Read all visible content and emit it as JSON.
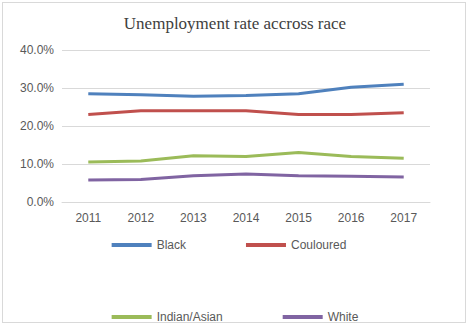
{
  "chart_data": {
    "type": "line",
    "title": "Unemployment rate accross race",
    "categories": [
      "2011",
      "2012",
      "2013",
      "2014",
      "2015",
      "2016",
      "2017"
    ],
    "series": [
      {
        "name": "Black",
        "color": "#4f81bd",
        "values": [
          28.5,
          28.2,
          27.8,
          28.0,
          28.5,
          30.2,
          31.0
        ]
      },
      {
        "name": "Couloured",
        "color": "#c0504d",
        "values": [
          23.0,
          24.0,
          24.0,
          24.0,
          23.0,
          23.0,
          23.5
        ]
      },
      {
        "name": "Indian/Asian",
        "color": "#9bbb59",
        "values": [
          10.5,
          10.8,
          12.2,
          12.0,
          13.0,
          12.0,
          11.5
        ]
      },
      {
        "name": "White",
        "color": "#8064a2",
        "values": [
          5.8,
          5.9,
          6.9,
          7.4,
          6.9,
          6.8,
          6.6
        ]
      }
    ],
    "ylim": [
      0,
      40
    ],
    "yticks": [
      {
        "value": 0,
        "label": "0.0%"
      },
      {
        "value": 10,
        "label": "10.0%"
      },
      {
        "value": 20,
        "label": "20.0%"
      },
      {
        "value": 30,
        "label": "30.0%"
      },
      {
        "value": 40,
        "label": "40.0%"
      }
    ],
    "grid": true,
    "legend": "bottom"
  }
}
